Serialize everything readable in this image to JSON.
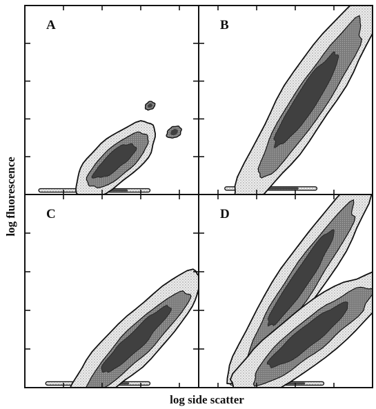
{
  "chart_data": {
    "type": "contour",
    "xlabel": "log side scatter",
    "ylabel": "log fluorescence",
    "axes": {
      "x_scale": "log",
      "y_scale": "log",
      "tick_labels": "none"
    },
    "panels": [
      {
        "label": "A",
        "position": "top-left",
        "populations": [
          {
            "center": [
              0.52,
              0.18
            ],
            "angle_deg": 40,
            "length": 0.42,
            "width": 0.17
          }
        ],
        "extras": [
          {
            "type": "baseline-streak",
            "x": [
              0.08,
              0.72
            ],
            "y": 0.02
          },
          {
            "type": "blob",
            "center": [
              0.72,
              0.47
            ],
            "size": 0.06
          },
          {
            "type": "blob",
            "center": [
              0.86,
              0.33
            ],
            "size": 0.09
          }
        ]
      },
      {
        "label": "B",
        "position": "top-right",
        "populations": [
          {
            "center": [
              0.62,
              0.5
            ],
            "angle_deg": 57,
            "length": 0.98,
            "width": 0.2
          }
        ],
        "extras": [
          {
            "type": "baseline-streak",
            "x": [
              0.15,
              0.68
            ],
            "y": 0.03
          }
        ]
      },
      {
        "label": "C",
        "position": "bottom-left",
        "populations": [
          {
            "center": [
              0.63,
              0.24
            ],
            "angle_deg": 45,
            "length": 0.72,
            "width": 0.18
          }
        ],
        "extras": [
          {
            "type": "baseline-streak",
            "x": [
              0.12,
              0.72
            ],
            "y": 0.02
          }
        ]
      },
      {
        "label": "D",
        "position": "bottom-right",
        "populations": [
          {
            "center": [
              0.58,
              0.55
            ],
            "angle_deg": 56,
            "length": 0.96,
            "width": 0.17
          },
          {
            "center": [
              0.63,
              0.27
            ],
            "angle_deg": 38,
            "length": 0.78,
            "width": 0.2
          }
        ],
        "extras": [
          {
            "type": "baseline-streak",
            "x": [
              0.18,
              0.72
            ],
            "y": 0.02
          }
        ]
      }
    ],
    "colors": {
      "outer_band": "#e6e6e6",
      "stipple": "#9a9a9a",
      "mid_band": "#8c8c8c",
      "core": "#404040",
      "outline": "#111111"
    }
  }
}
